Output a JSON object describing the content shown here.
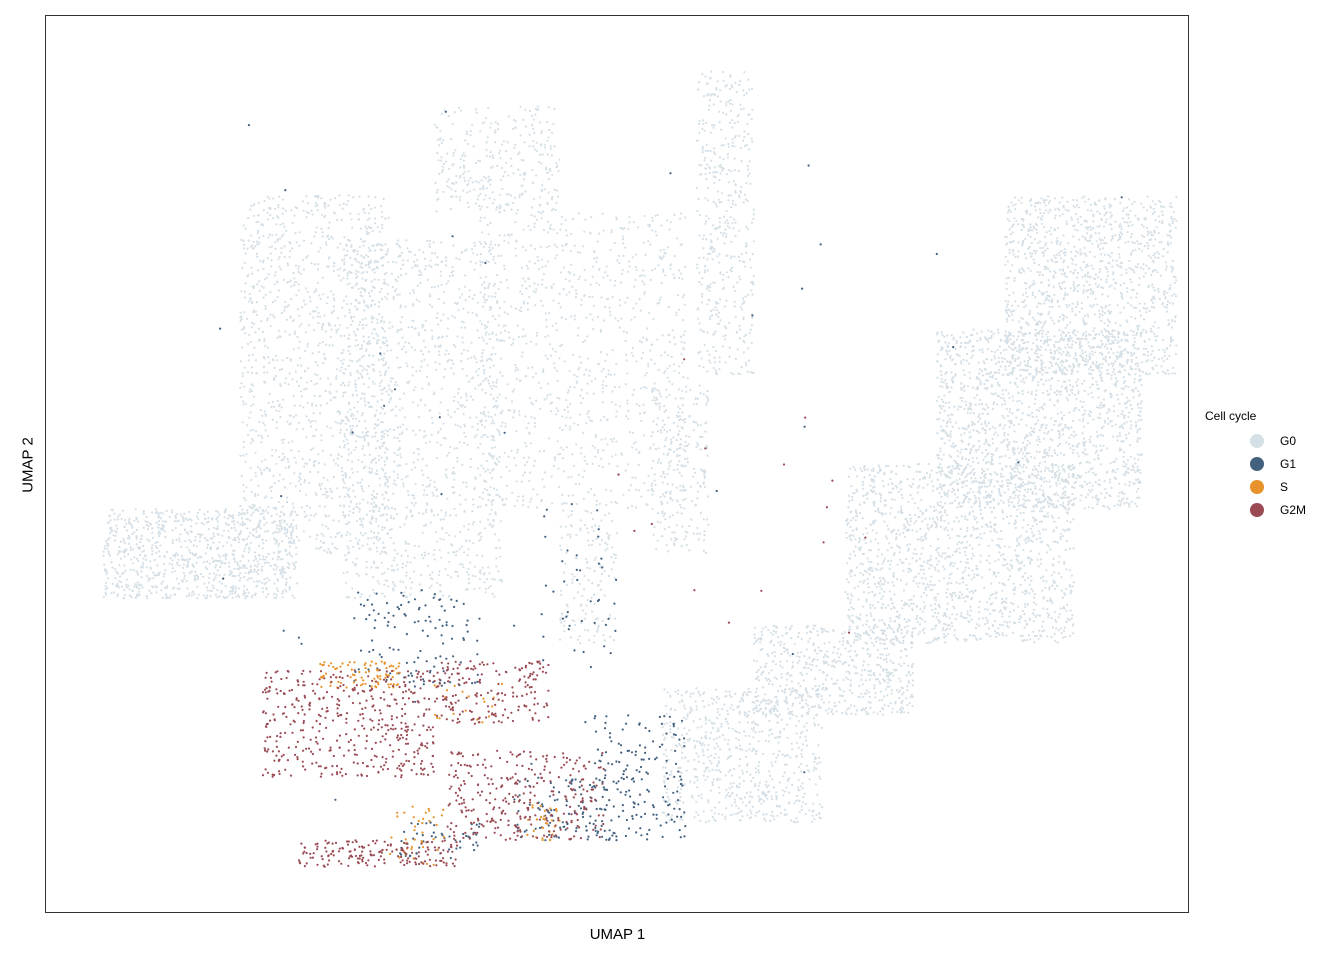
{
  "chart_data": {
    "type": "scatter",
    "xlabel": "UMAP 1",
    "ylabel": "UMAP 2",
    "ticks": "none",
    "grid": false,
    "legend_position": "right",
    "legend": {
      "title": "Cell cycle",
      "items": [
        {
          "label": "G0",
          "color": "#d5dfe6"
        },
        {
          "label": "G1",
          "color": "#43617f"
        },
        {
          "label": "S",
          "color": "#e8922b"
        },
        {
          "label": "G2M",
          "color": "#9a4a53"
        }
      ]
    },
    "series": [
      {
        "name": "G0",
        "color": "#d5dfe6",
        "regions": [
          {
            "x": [
              0.05,
              0.22
            ],
            "y": [
              0.35,
              0.45
            ],
            "n": 900
          },
          {
            "x": [
              0.17,
              0.3
            ],
            "y": [
              0.4,
              0.8
            ],
            "n": 1200
          },
          {
            "x": [
              0.26,
              0.4
            ],
            "y": [
              0.35,
              0.75
            ],
            "n": 1200
          },
          {
            "x": [
              0.34,
              0.45
            ],
            "y": [
              0.78,
              0.9
            ],
            "n": 300
          },
          {
            "x": [
              0.38,
              0.56
            ],
            "y": [
              0.45,
              0.78
            ],
            "n": 900
          },
          {
            "x": [
              0.45,
              0.5
            ],
            "y": [
              0.3,
              0.45
            ],
            "n": 150
          },
          {
            "x": [
              0.53,
              0.58
            ],
            "y": [
              0.4,
              0.6
            ],
            "n": 250
          },
          {
            "x": [
              0.57,
              0.62
            ],
            "y": [
              0.6,
              0.94
            ],
            "n": 450
          },
          {
            "x": [
              0.54,
              0.68
            ],
            "y": [
              0.1,
              0.25
            ],
            "n": 700
          },
          {
            "x": [
              0.62,
              0.76
            ],
            "y": [
              0.22,
              0.32
            ],
            "n": 600
          },
          {
            "x": [
              0.7,
              0.9
            ],
            "y": [
              0.3,
              0.5
            ],
            "n": 1500
          },
          {
            "x": [
              0.78,
              0.96
            ],
            "y": [
              0.45,
              0.65
            ],
            "n": 1600
          },
          {
            "x": [
              0.84,
              0.99
            ],
            "y": [
              0.6,
              0.8
            ],
            "n": 1200
          }
        ]
      },
      {
        "name": "G1",
        "color": "#43617f",
        "regions": [
          {
            "x": [
              0.27,
              0.38
            ],
            "y": [
              0.25,
              0.36
            ],
            "n": 120
          },
          {
            "x": [
              0.41,
              0.51
            ],
            "y": [
              0.08,
              0.15
            ],
            "n": 120
          },
          {
            "x": [
              0.48,
              0.56
            ],
            "y": [
              0.08,
              0.22
            ],
            "n": 160
          },
          {
            "x": [
              0.31,
              0.38
            ],
            "y": [
              0.06,
              0.1
            ],
            "n": 50
          },
          {
            "x": [
              0.43,
              0.5
            ],
            "y": [
              0.28,
              0.45
            ],
            "n": 40
          },
          {
            "x": [
              0.05,
              0.95
            ],
            "y": [
              0.1,
              0.9
            ],
            "n": 40
          }
        ]
      },
      {
        "name": "S",
        "color": "#e8922b",
        "regions": [
          {
            "x": [
              0.24,
              0.31
            ],
            "y": [
              0.25,
              0.28
            ],
            "n": 90
          },
          {
            "x": [
              0.3,
              0.35
            ],
            "y": [
              0.05,
              0.12
            ],
            "n": 40
          },
          {
            "x": [
              0.42,
              0.45
            ],
            "y": [
              0.08,
              0.12
            ],
            "n": 30
          },
          {
            "x": [
              0.34,
              0.4
            ],
            "y": [
              0.21,
              0.26
            ],
            "n": 20
          }
        ]
      },
      {
        "name": "G2M",
        "color": "#9a4a53",
        "regions": [
          {
            "x": [
              0.19,
              0.34
            ],
            "y": [
              0.15,
              0.27
            ],
            "n": 430
          },
          {
            "x": [
              0.34,
              0.44
            ],
            "y": [
              0.21,
              0.28
            ],
            "n": 180
          },
          {
            "x": [
              0.35,
              0.49
            ],
            "y": [
              0.08,
              0.18
            ],
            "n": 300
          },
          {
            "x": [
              0.22,
              0.36
            ],
            "y": [
              0.05,
              0.08
            ],
            "n": 170
          },
          {
            "x": [
              0.5,
              0.73
            ],
            "y": [
              0.3,
              0.62
            ],
            "n": 15
          }
        ]
      }
    ]
  }
}
